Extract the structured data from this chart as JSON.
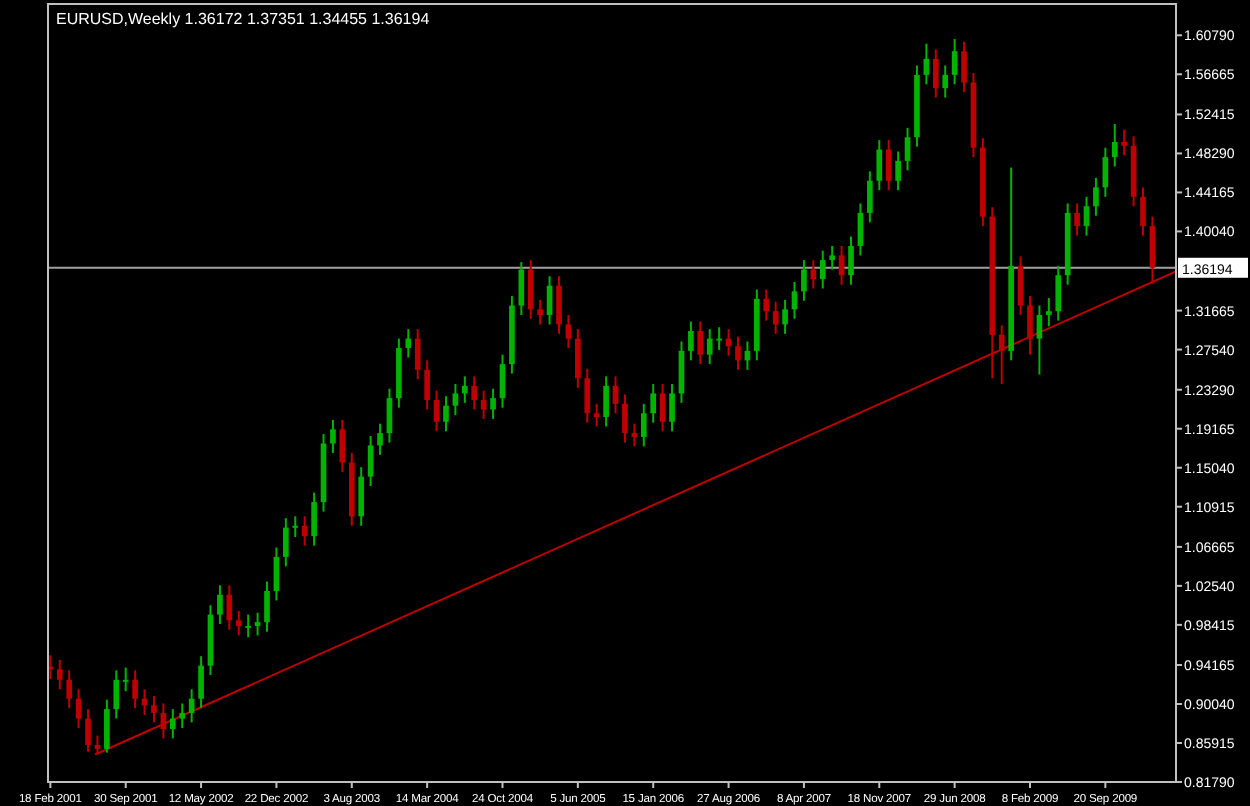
{
  "chart_data": {
    "type": "candlestick",
    "title": "EURUSD,Weekly  1.36172 1.37351 1.34455 1.36194",
    "x": [
      "2001-02-18",
      "2001-03-18",
      "2001-04-15",
      "2001-05-13",
      "2001-06-10",
      "2001-07-08",
      "2001-08-05",
      "2001-09-02",
      "2001-09-30",
      "2001-10-28",
      "2001-11-25",
      "2001-12-23",
      "2002-01-20",
      "2002-02-17",
      "2002-03-17",
      "2002-04-14",
      "2002-05-12",
      "2002-06-09",
      "2002-07-07",
      "2002-08-04",
      "2002-09-01",
      "2002-09-29",
      "2002-10-27",
      "2002-11-24",
      "2002-12-22",
      "2003-01-19",
      "2003-02-16",
      "2003-03-16",
      "2003-04-13",
      "2003-05-11",
      "2003-06-08",
      "2003-07-06",
      "2003-08-03",
      "2003-08-31",
      "2003-09-28",
      "2003-10-26",
      "2003-11-23",
      "2003-12-21",
      "2004-01-18",
      "2004-02-15",
      "2004-03-14",
      "2004-04-11",
      "2004-05-09",
      "2004-06-06",
      "2004-07-04",
      "2004-08-01",
      "2004-08-29",
      "2004-09-26",
      "2004-10-24",
      "2004-11-21",
      "2004-12-19",
      "2005-01-16",
      "2005-02-13",
      "2005-03-13",
      "2005-04-10",
      "2005-05-08",
      "2005-06-05",
      "2005-07-03",
      "2005-07-31",
      "2005-08-28",
      "2005-09-25",
      "2005-10-23",
      "2005-11-20",
      "2005-12-18",
      "2006-01-15",
      "2006-02-12",
      "2006-03-12",
      "2006-04-09",
      "2006-05-07",
      "2006-06-04",
      "2006-07-02",
      "2006-07-30",
      "2006-08-27",
      "2006-09-24",
      "2006-10-22",
      "2006-11-19",
      "2006-12-17",
      "2007-01-14",
      "2007-02-11",
      "2007-03-11",
      "2007-04-08",
      "2007-05-06",
      "2007-06-03",
      "2007-07-01",
      "2007-07-29",
      "2007-08-26",
      "2007-09-23",
      "2007-10-21",
      "2007-11-18",
      "2007-12-16",
      "2008-01-13",
      "2008-02-10",
      "2008-03-09",
      "2008-04-06",
      "2008-05-04",
      "2008-06-01",
      "2008-06-29",
      "2008-07-27",
      "2008-08-24",
      "2008-09-21",
      "2008-10-19",
      "2008-11-16",
      "2008-12-14",
      "2009-01-11",
      "2009-02-08",
      "2009-03-08",
      "2009-04-05",
      "2009-05-03",
      "2009-05-31",
      "2009-06-28",
      "2009-07-26",
      "2009-08-23",
      "2009-09-20",
      "2009-10-18",
      "2009-11-15",
      "2009-12-13",
      "2010-01-10",
      "2010-02-07"
    ],
    "ohlc": [
      [
        0.94,
        0.952,
        0.927,
        0.937
      ],
      [
        0.937,
        0.947,
        0.916,
        0.926
      ],
      [
        0.926,
        0.936,
        0.896,
        0.906
      ],
      [
        0.906,
        0.916,
        0.875,
        0.885
      ],
      [
        0.885,
        0.895,
        0.85,
        0.857
      ],
      [
        0.857,
        0.867,
        0.847,
        0.853
      ],
      [
        0.853,
        0.905,
        0.849,
        0.895
      ],
      [
        0.895,
        0.936,
        0.885,
        0.926
      ],
      [
        0.926,
        0.939,
        0.914,
        0.926
      ],
      [
        0.926,
        0.936,
        0.896,
        0.906
      ],
      [
        0.906,
        0.916,
        0.889,
        0.899
      ],
      [
        0.899,
        0.909,
        0.881,
        0.891
      ],
      [
        0.891,
        0.901,
        0.864,
        0.874
      ],
      [
        0.874,
        0.895,
        0.864,
        0.885
      ],
      [
        0.885,
        0.901,
        0.875,
        0.891
      ],
      [
        0.891,
        0.916,
        0.881,
        0.906
      ],
      [
        0.906,
        0.951,
        0.896,
        0.941
      ],
      [
        0.941,
        1.005,
        0.931,
        0.995
      ],
      [
        0.995,
        1.026,
        0.985,
        1.016
      ],
      [
        1.016,
        1.026,
        0.979,
        0.989
      ],
      [
        0.989,
        0.999,
        0.973,
        0.983
      ],
      [
        0.983,
        0.995,
        0.971,
        0.983
      ],
      [
        0.983,
        0.997,
        0.973,
        0.987
      ],
      [
        0.987,
        1.03,
        0.977,
        1.02
      ],
      [
        1.02,
        1.066,
        1.01,
        1.056
      ],
      [
        1.056,
        1.097,
        1.046,
        1.087
      ],
      [
        1.087,
        1.099,
        1.077,
        1.089
      ],
      [
        1.089,
        1.099,
        1.068,
        1.078
      ],
      [
        1.078,
        1.124,
        1.068,
        1.114
      ],
      [
        1.114,
        1.186,
        1.104,
        1.176
      ],
      [
        1.176,
        1.201,
        1.166,
        1.191
      ],
      [
        1.191,
        1.201,
        1.146,
        1.156
      ],
      [
        1.156,
        1.166,
        1.089,
        1.099
      ],
      [
        1.099,
        1.151,
        1.089,
        1.141
      ],
      [
        1.141,
        1.184,
        1.131,
        1.174
      ],
      [
        1.174,
        1.197,
        1.164,
        1.187
      ],
      [
        1.187,
        1.234,
        1.177,
        1.224
      ],
      [
        1.224,
        1.287,
        1.214,
        1.277
      ],
      [
        1.277,
        1.297,
        1.267,
        1.287
      ],
      [
        1.287,
        1.297,
        1.244,
        1.254
      ],
      [
        1.254,
        1.264,
        1.212,
        1.222
      ],
      [
        1.222,
        1.232,
        1.189,
        1.199
      ],
      [
        1.199,
        1.226,
        1.189,
        1.216
      ],
      [
        1.216,
        1.239,
        1.206,
        1.229
      ],
      [
        1.229,
        1.247,
        1.219,
        1.237
      ],
      [
        1.237,
        1.247,
        1.212,
        1.222
      ],
      [
        1.222,
        1.232,
        1.202,
        1.212
      ],
      [
        1.212,
        1.234,
        1.202,
        1.224
      ],
      [
        1.224,
        1.27,
        1.214,
        1.26
      ],
      [
        1.26,
        1.332,
        1.25,
        1.322
      ],
      [
        1.322,
        1.368,
        1.312,
        1.36
      ],
      [
        1.36,
        1.37,
        1.308,
        1.318
      ],
      [
        1.318,
        1.328,
        1.302,
        1.312
      ],
      [
        1.312,
        1.353,
        1.302,
        1.343
      ],
      [
        1.343,
        1.353,
        1.292,
        1.302
      ],
      [
        1.302,
        1.312,
        1.277,
        1.287
      ],
      [
        1.287,
        1.297,
        1.235,
        1.245
      ],
      [
        1.245,
        1.255,
        1.198,
        1.208
      ],
      [
        1.208,
        1.218,
        1.194,
        1.204
      ],
      [
        1.204,
        1.247,
        1.194,
        1.237
      ],
      [
        1.237,
        1.247,
        1.208,
        1.218
      ],
      [
        1.218,
        1.228,
        1.177,
        1.187
      ],
      [
        1.187,
        1.197,
        1.173,
        1.183
      ],
      [
        1.183,
        1.218,
        1.173,
        1.208
      ],
      [
        1.208,
        1.239,
        1.198,
        1.229
      ],
      [
        1.229,
        1.239,
        1.189,
        1.199
      ],
      [
        1.199,
        1.239,
        1.189,
        1.229
      ],
      [
        1.229,
        1.284,
        1.219,
        1.274
      ],
      [
        1.274,
        1.305,
        1.264,
        1.295
      ],
      [
        1.295,
        1.305,
        1.26,
        1.27
      ],
      [
        1.27,
        1.297,
        1.26,
        1.287
      ],
      [
        1.287,
        1.299,
        1.275,
        1.287
      ],
      [
        1.287,
        1.297,
        1.269,
        1.279
      ],
      [
        1.279,
        1.289,
        1.254,
        1.264
      ],
      [
        1.264,
        1.284,
        1.254,
        1.274
      ],
      [
        1.274,
        1.339,
        1.264,
        1.329
      ],
      [
        1.329,
        1.339,
        1.306,
        1.316
      ],
      [
        1.316,
        1.326,
        1.292,
        1.302
      ],
      [
        1.302,
        1.328,
        1.292,
        1.318
      ],
      [
        1.318,
        1.347,
        1.308,
        1.337
      ],
      [
        1.337,
        1.37,
        1.327,
        1.36
      ],
      [
        1.36,
        1.37,
        1.34,
        1.35
      ],
      [
        1.35,
        1.38,
        1.34,
        1.37
      ],
      [
        1.37,
        1.385,
        1.36,
        1.375
      ],
      [
        1.375,
        1.385,
        1.344,
        1.354
      ],
      [
        1.354,
        1.395,
        1.344,
        1.385
      ],
      [
        1.385,
        1.43,
        1.375,
        1.42
      ],
      [
        1.42,
        1.464,
        1.41,
        1.454
      ],
      [
        1.454,
        1.497,
        1.444,
        1.487
      ],
      [
        1.487,
        1.497,
        1.444,
        1.454
      ],
      [
        1.454,
        1.485,
        1.444,
        1.475
      ],
      [
        1.475,
        1.51,
        1.465,
        1.5
      ],
      [
        1.5,
        1.576,
        1.49,
        1.566
      ],
      [
        1.566,
        1.599,
        1.556,
        1.583
      ],
      [
        1.583,
        1.593,
        1.542,
        1.552
      ],
      [
        1.552,
        1.576,
        1.542,
        1.566
      ],
      [
        1.566,
        1.604,
        1.556,
        1.591
      ],
      [
        1.591,
        1.601,
        1.548,
        1.558
      ],
      [
        1.558,
        1.568,
        1.479,
        1.489
      ],
      [
        1.489,
        1.499,
        1.406,
        1.416
      ],
      [
        1.416,
        1.426,
        1.245,
        1.291
      ],
      [
        1.291,
        1.301,
        1.239,
        1.274
      ],
      [
        1.274,
        1.468,
        1.264,
        1.364
      ],
      [
        1.364,
        1.374,
        1.312,
        1.322
      ],
      [
        1.322,
        1.332,
        1.27,
        1.287
      ],
      [
        1.287,
        1.322,
        1.249,
        1.312
      ],
      [
        1.312,
        1.33,
        1.3,
        1.316
      ],
      [
        1.316,
        1.364,
        1.306,
        1.354
      ],
      [
        1.354,
        1.43,
        1.344,
        1.42
      ],
      [
        1.42,
        1.43,
        1.396,
        1.406
      ],
      [
        1.406,
        1.437,
        1.396,
        1.427
      ],
      [
        1.427,
        1.457,
        1.417,
        1.447
      ],
      [
        1.447,
        1.489,
        1.437,
        1.479
      ],
      [
        1.479,
        1.514,
        1.469,
        1.495
      ],
      [
        1.495,
        1.508,
        1.481,
        1.491
      ],
      [
        1.491,
        1.501,
        1.427,
        1.437
      ],
      [
        1.437,
        1.447,
        1.396,
        1.406
      ],
      [
        1.406,
        1.416,
        1.345,
        1.362
      ]
    ],
    "series": [
      {
        "type": "line",
        "color": "#c00000",
        "x": [
          "2001-07-01",
          "2010-04-18"
        ],
        "values": [
          0.847,
          1.358
        ]
      }
    ],
    "xlim": [
      "2001-02-11",
      "2010-04-18"
    ],
    "xticks": [
      {
        "value": "2001-02-18",
        "label": "18 Feb 2001"
      },
      {
        "value": "2001-09-30",
        "label": "30 Sep 2001"
      },
      {
        "value": "2002-05-12",
        "label": "12 May 2002"
      },
      {
        "value": "2002-12-22",
        "label": "22 Dec 2002"
      },
      {
        "value": "2003-08-03",
        "label": "3 Aug 2003"
      },
      {
        "value": "2004-03-14",
        "label": "14 Mar 2004"
      },
      {
        "value": "2004-10-24",
        "label": "24 Oct 2004"
      },
      {
        "value": "2005-06-05",
        "label": "5 Jun 2005"
      },
      {
        "value": "2006-01-15",
        "label": "15 Jan 2006"
      },
      {
        "value": "2006-08-27",
        "label": "27 Aug 2006"
      },
      {
        "value": "2007-04-08",
        "label": "8 Apr 2007"
      },
      {
        "value": "2007-11-18",
        "label": "18 Nov 2007"
      },
      {
        "value": "2008-06-29",
        "label": "29 Jun 2008"
      },
      {
        "value": "2009-02-08",
        "label": "8 Feb 2009"
      },
      {
        "value": "2009-09-20",
        "label": "20 Sep 2009"
      }
    ],
    "ylim": [
      0.8179,
      1.641
    ],
    "yticks": [
      {
        "value": 0.8179,
        "label": "0.81790"
      },
      {
        "value": 0.85915,
        "label": "0.85915"
      },
      {
        "value": 0.9004,
        "label": "0.90040"
      },
      {
        "value": 0.94165,
        "label": "0.94165"
      },
      {
        "value": 0.98415,
        "label": "0.98415"
      },
      {
        "value": 1.0254,
        "label": "1.02540"
      },
      {
        "value": 1.06665,
        "label": "1.06665"
      },
      {
        "value": 1.10915,
        "label": "1.10915"
      },
      {
        "value": 1.1504,
        "label": "1.15040"
      },
      {
        "value": 1.19165,
        "label": "1.19165"
      },
      {
        "value": 1.2329,
        "label": "1.23290"
      },
      {
        "value": 1.2754,
        "label": "1.27540"
      },
      {
        "value": 1.31665,
        "label": "1.31665"
      },
      {
        "value": 1.4004,
        "label": "1.40040"
      },
      {
        "value": 1.44165,
        "label": "1.44165"
      },
      {
        "value": 1.4829,
        "label": "1.48290"
      },
      {
        "value": 1.52415,
        "label": "1.52415"
      },
      {
        "value": 1.56665,
        "label": "1.56665"
      },
      {
        "value": 1.6079,
        "label": "1.60790"
      }
    ],
    "ref_lines": [
      {
        "axis": "y",
        "value": 1.36194,
        "label": "1.36194",
        "color": "#a0a0a0"
      }
    ]
  }
}
